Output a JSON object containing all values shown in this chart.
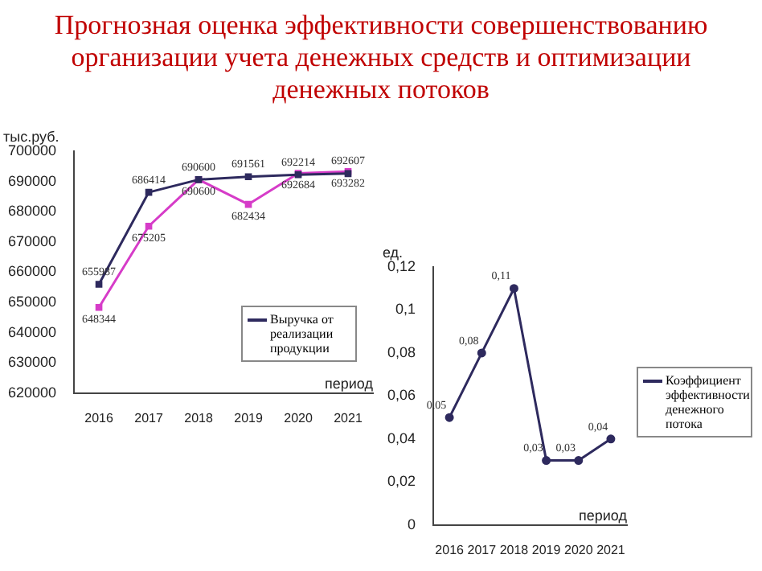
{
  "chart_data": [
    {
      "type": "line",
      "title": "Прогнозная оценка эффективности совершенствованию организации учета денежных средств и оптимизации денежных потоков",
      "ylabel": "тыс.руб.",
      "xlabel": "период",
      "categories": [
        "2016",
        "2017",
        "2018",
        "2019",
        "2020",
        "2021"
      ],
      "series": [
        {
          "name": "Выручка от реализации продукции",
          "color": "#2e2a5e",
          "values": [
            655987,
            686414,
            690600,
            691561,
            692214,
            692607
          ]
        },
        {
          "color": "#d63cc8",
          "values": [
            648344,
            675205,
            690600,
            682434,
            692684,
            693282
          ]
        }
      ],
      "ylim": [
        620000,
        700000
      ],
      "yticks": [
        620000,
        630000,
        640000,
        650000,
        660000,
        670000,
        680000,
        690000,
        700000
      ],
      "grid": false,
      "legend": "right",
      "marker": "square",
      "data_labels": true
    },
    {
      "type": "line",
      "ylabel": "ед.",
      "xlabel": "период",
      "categories": [
        "2016",
        "2017",
        "2018",
        "2019",
        "2020",
        "2021"
      ],
      "series": [
        {
          "name": "Коэффициент эффективности денежного потока",
          "color": "#2e2a5e",
          "values": [
            0.05,
            0.08,
            0.11,
            0.03,
            0.03,
            0.04
          ],
          "value_labels": [
            "0,05",
            "0,08",
            "0,11",
            "0,03",
            "0,03",
            "0,04"
          ]
        }
      ],
      "ylim": [
        0,
        0.12
      ],
      "yticks": [
        {
          "value": 0,
          "label": "0"
        },
        {
          "value": 0.02,
          "label": "0,02"
        },
        {
          "value": 0.04,
          "label": "0,04"
        },
        {
          "value": 0.06,
          "label": "0,06"
        },
        {
          "value": 0.08,
          "label": "0,08"
        },
        {
          "value": 0.1,
          "label": "0,1"
        },
        {
          "value": 0.12,
          "label": "0,12"
        }
      ],
      "grid": false,
      "legend": "right",
      "marker": "circle"
    }
  ]
}
